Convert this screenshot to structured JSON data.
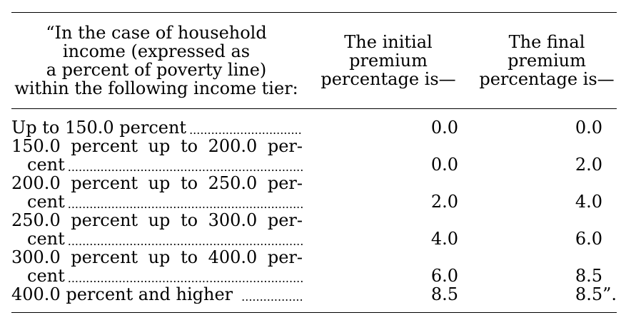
{
  "header": {
    "tier_lines": [
      "“In the case of household",
      "income (expressed as",
      "a percent of poverty line)",
      "within the following income tier:"
    ],
    "initial_lines": [
      "The initial",
      "premium",
      "percentage is—"
    ],
    "final_lines": [
      "The final",
      "premium",
      "percentage is—"
    ]
  },
  "rows": [
    {
      "label_line1": "Up to 150.0 percent",
      "label_line2": "",
      "initial": "0.0",
      "final": "0.0"
    },
    {
      "label_line1": "150.0 percent up to 200.0 per-",
      "label_line2": "cent",
      "initial": "0.0",
      "final": "2.0"
    },
    {
      "label_line1": "200.0 percent up to 250.0 per-",
      "label_line2": "cent",
      "initial": "2.0",
      "final": "4.0"
    },
    {
      "label_line1": "250.0 percent up to 300.0 per-",
      "label_line2": "cent",
      "initial": "4.0",
      "final": "6.0"
    },
    {
      "label_line1": "300.0 percent up to 400.0 per-",
      "label_line2": "cent",
      "initial": "6.0",
      "final": "8.5"
    },
    {
      "label_line1": "400.0 percent and higher",
      "label_line2": "",
      "initial": "8.5",
      "final": "8.5”."
    }
  ]
}
